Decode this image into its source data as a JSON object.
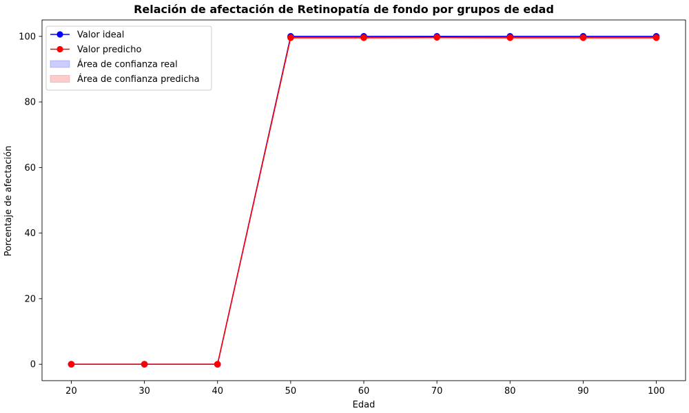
{
  "chart_data": {
    "type": "line",
    "title": "Relación de afectación de Retinopatía de fondo por grupos de edad",
    "xlabel": "Edad",
    "ylabel": "Porcentaje de afectación",
    "x": [
      20,
      30,
      40,
      50,
      60,
      70,
      80,
      90,
      100
    ],
    "xlim": [
      16,
      104
    ],
    "ylim": [
      -5,
      105
    ],
    "xticks": [
      20,
      30,
      40,
      50,
      60,
      70,
      80,
      90,
      100
    ],
    "yticks": [
      0,
      20,
      40,
      60,
      80,
      100
    ],
    "grid": false,
    "legend_position": "top-left",
    "series": [
      {
        "name": "Valor ideal",
        "color": "#0000ff",
        "values": [
          0,
          0,
          0,
          100,
          100,
          100,
          100,
          100,
          100
        ]
      },
      {
        "name": "Valor predicho",
        "color": "#ff0000",
        "values": [
          0,
          0,
          0,
          99.6,
          99.6,
          99.7,
          99.6,
          99.6,
          99.6
        ]
      }
    ],
    "bands": [
      {
        "name": "Área de confianza real",
        "color": "#0000ff",
        "lower": [
          0,
          0,
          0,
          99.8,
          99.8,
          99.8,
          99.8,
          99.8,
          99.8
        ],
        "upper": [
          0,
          0,
          0,
          100,
          100,
          100,
          100,
          100,
          100
        ]
      },
      {
        "name": "Área de confianza predicha",
        "color": "#ff0000",
        "lower": [
          0,
          0,
          0,
          99.1,
          99.1,
          99.2,
          99.1,
          99.1,
          99.1
        ],
        "upper": [
          0,
          0,
          0,
          100,
          100,
          100,
          100,
          100,
          100
        ]
      }
    ]
  }
}
